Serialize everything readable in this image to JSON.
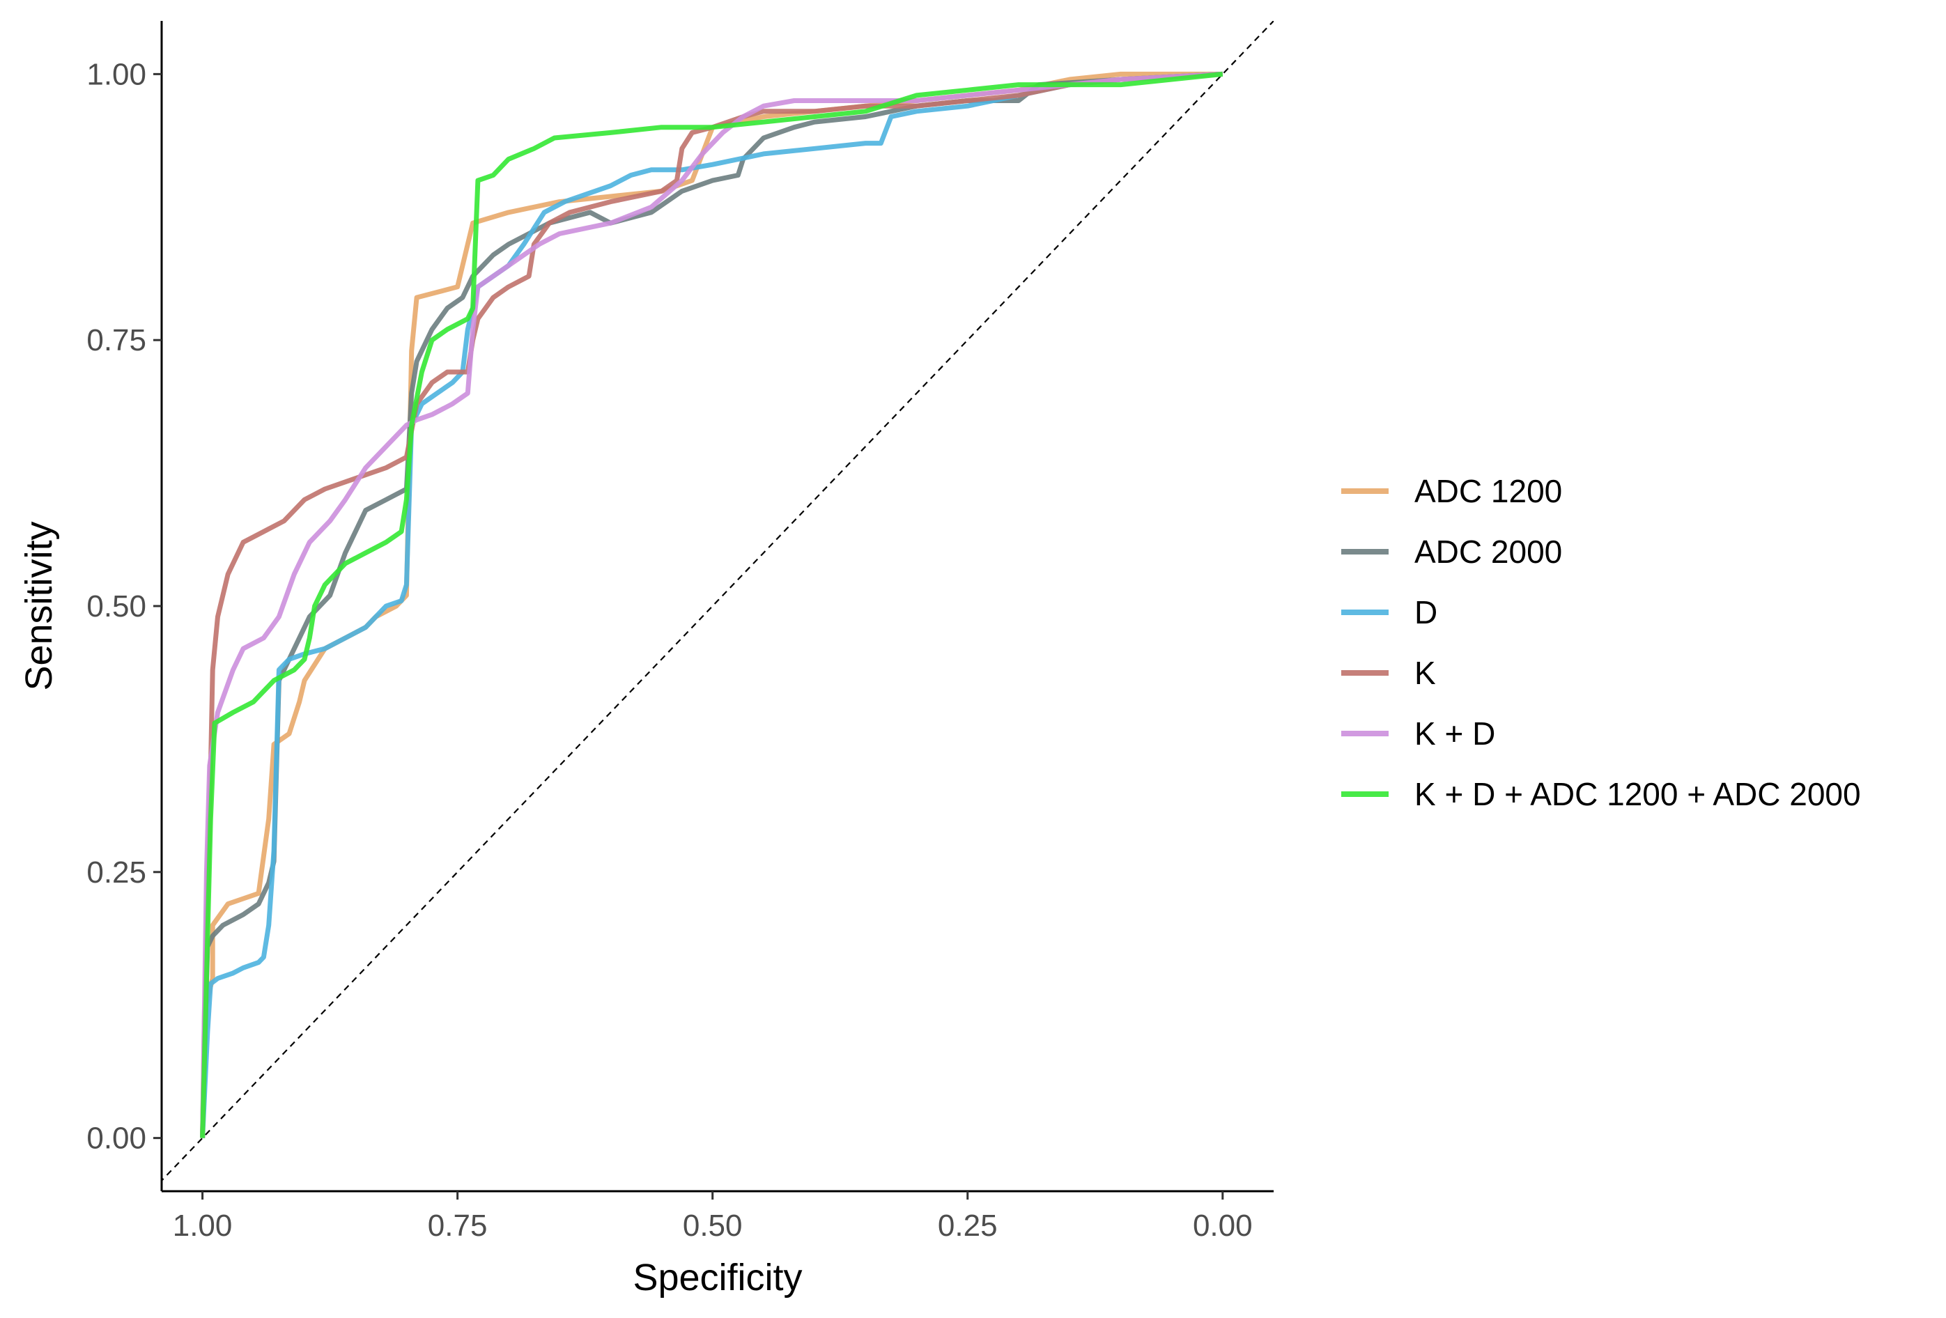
{
  "chart_data": {
    "type": "line",
    "title": "",
    "xlabel": "Specificity",
    "ylabel": "Sensitivity",
    "x_reversed": true,
    "xlim": [
      1.04,
      -0.05
    ],
    "ylim": [
      -0.05,
      1.05
    ],
    "x_ticks": [
      1.0,
      0.75,
      0.5,
      0.25,
      0.0
    ],
    "x_tick_labels": [
      "1.00",
      "0.75",
      "0.50",
      "0.25",
      "0.00"
    ],
    "y_ticks": [
      0.0,
      0.25,
      0.5,
      0.75,
      1.0
    ],
    "y_tick_labels": [
      "0.00",
      "0.25",
      "0.50",
      "0.75",
      "1.00"
    ],
    "grid": false,
    "legend_position": "right",
    "reference_line": {
      "style": "dashed",
      "color": "#000000",
      "from": [
        1.05,
        -0.05
      ],
      "to": [
        -0.05,
        1.05
      ]
    },
    "series": [
      {
        "name": "ADC 1200",
        "color": "#E8A86A",
        "points": [
          [
            1.0,
            0.0
          ],
          [
            0.998,
            0.12
          ],
          [
            0.99,
            0.15
          ],
          [
            0.99,
            0.2
          ],
          [
            0.975,
            0.22
          ],
          [
            0.96,
            0.225
          ],
          [
            0.945,
            0.23
          ],
          [
            0.935,
            0.3
          ],
          [
            0.93,
            0.37
          ],
          [
            0.915,
            0.38
          ],
          [
            0.905,
            0.41
          ],
          [
            0.9,
            0.43
          ],
          [
            0.88,
            0.46
          ],
          [
            0.86,
            0.47
          ],
          [
            0.84,
            0.48
          ],
          [
            0.83,
            0.49
          ],
          [
            0.81,
            0.5
          ],
          [
            0.8,
            0.51
          ],
          [
            0.795,
            0.74
          ],
          [
            0.79,
            0.79
          ],
          [
            0.77,
            0.795
          ],
          [
            0.75,
            0.8
          ],
          [
            0.745,
            0.82
          ],
          [
            0.735,
            0.86
          ],
          [
            0.7,
            0.87
          ],
          [
            0.65,
            0.88
          ],
          [
            0.6,
            0.885
          ],
          [
            0.55,
            0.89
          ],
          [
            0.52,
            0.9
          ],
          [
            0.5,
            0.95
          ],
          [
            0.45,
            0.96
          ],
          [
            0.4,
            0.965
          ],
          [
            0.35,
            0.97
          ],
          [
            0.3,
            0.975
          ],
          [
            0.25,
            0.98
          ],
          [
            0.2,
            0.985
          ],
          [
            0.15,
            0.995
          ],
          [
            0.1,
            1.0
          ],
          [
            0.0,
            1.0
          ]
        ]
      },
      {
        "name": "ADC 2000",
        "color": "#6B7D80",
        "points": [
          [
            1.0,
            0.0
          ],
          [
            0.995,
            0.18
          ],
          [
            0.99,
            0.19
          ],
          [
            0.98,
            0.2
          ],
          [
            0.96,
            0.21
          ],
          [
            0.945,
            0.22
          ],
          [
            0.935,
            0.24
          ],
          [
            0.93,
            0.26
          ],
          [
            0.925,
            0.43
          ],
          [
            0.915,
            0.45
          ],
          [
            0.905,
            0.47
          ],
          [
            0.895,
            0.49
          ],
          [
            0.875,
            0.51
          ],
          [
            0.86,
            0.55
          ],
          [
            0.85,
            0.57
          ],
          [
            0.84,
            0.59
          ],
          [
            0.82,
            0.6
          ],
          [
            0.8,
            0.61
          ],
          [
            0.795,
            0.7
          ],
          [
            0.79,
            0.73
          ],
          [
            0.775,
            0.76
          ],
          [
            0.76,
            0.78
          ],
          [
            0.745,
            0.79
          ],
          [
            0.735,
            0.81
          ],
          [
            0.715,
            0.83
          ],
          [
            0.7,
            0.84
          ],
          [
            0.68,
            0.85
          ],
          [
            0.66,
            0.86
          ],
          [
            0.62,
            0.87
          ],
          [
            0.6,
            0.86
          ],
          [
            0.56,
            0.87
          ],
          [
            0.53,
            0.89
          ],
          [
            0.5,
            0.9
          ],
          [
            0.475,
            0.905
          ],
          [
            0.47,
            0.92
          ],
          [
            0.45,
            0.94
          ],
          [
            0.42,
            0.95
          ],
          [
            0.4,
            0.955
          ],
          [
            0.35,
            0.96
          ],
          [
            0.3,
            0.97
          ],
          [
            0.25,
            0.975
          ],
          [
            0.2,
            0.975
          ],
          [
            0.18,
            0.99
          ],
          [
            0.1,
            0.995
          ],
          [
            0.0,
            1.0
          ]
        ]
      },
      {
        "name": "D",
        "color": "#4DB3DF",
        "points": [
          [
            1.0,
            0.0
          ],
          [
            0.995,
            0.1
          ],
          [
            0.992,
            0.145
          ],
          [
            0.985,
            0.15
          ],
          [
            0.97,
            0.155
          ],
          [
            0.96,
            0.16
          ],
          [
            0.945,
            0.165
          ],
          [
            0.94,
            0.17
          ],
          [
            0.935,
            0.2
          ],
          [
            0.93,
            0.27
          ],
          [
            0.925,
            0.44
          ],
          [
            0.915,
            0.45
          ],
          [
            0.9,
            0.455
          ],
          [
            0.88,
            0.46
          ],
          [
            0.86,
            0.47
          ],
          [
            0.84,
            0.48
          ],
          [
            0.82,
            0.5
          ],
          [
            0.805,
            0.505
          ],
          [
            0.8,
            0.52
          ],
          [
            0.795,
            0.67
          ],
          [
            0.785,
            0.69
          ],
          [
            0.77,
            0.7
          ],
          [
            0.755,
            0.71
          ],
          [
            0.745,
            0.72
          ],
          [
            0.74,
            0.76
          ],
          [
            0.73,
            0.8
          ],
          [
            0.715,
            0.81
          ],
          [
            0.7,
            0.82
          ],
          [
            0.685,
            0.84
          ],
          [
            0.665,
            0.87
          ],
          [
            0.645,
            0.88
          ],
          [
            0.6,
            0.895
          ],
          [
            0.58,
            0.905
          ],
          [
            0.56,
            0.91
          ],
          [
            0.53,
            0.91
          ],
          [
            0.5,
            0.915
          ],
          [
            0.45,
            0.925
          ],
          [
            0.4,
            0.93
          ],
          [
            0.35,
            0.935
          ],
          [
            0.335,
            0.935
          ],
          [
            0.325,
            0.96
          ],
          [
            0.3,
            0.965
          ],
          [
            0.25,
            0.97
          ],
          [
            0.2,
            0.98
          ],
          [
            0.15,
            0.99
          ],
          [
            0.1,
            0.995
          ],
          [
            0.0,
            1.0
          ]
        ]
      },
      {
        "name": "K",
        "color": "#C0726C",
        "points": [
          [
            1.0,
            0.0
          ],
          [
            0.996,
            0.2
          ],
          [
            0.993,
            0.3
          ],
          [
            0.99,
            0.44
          ],
          [
            0.985,
            0.49
          ],
          [
            0.975,
            0.53
          ],
          [
            0.96,
            0.56
          ],
          [
            0.94,
            0.57
          ],
          [
            0.92,
            0.58
          ],
          [
            0.9,
            0.6
          ],
          [
            0.88,
            0.61
          ],
          [
            0.85,
            0.62
          ],
          [
            0.82,
            0.63
          ],
          [
            0.8,
            0.64
          ],
          [
            0.79,
            0.69
          ],
          [
            0.775,
            0.71
          ],
          [
            0.76,
            0.72
          ],
          [
            0.74,
            0.72
          ],
          [
            0.735,
            0.75
          ],
          [
            0.73,
            0.77
          ],
          [
            0.715,
            0.79
          ],
          [
            0.7,
            0.8
          ],
          [
            0.68,
            0.81
          ],
          [
            0.675,
            0.84
          ],
          [
            0.66,
            0.86
          ],
          [
            0.64,
            0.87
          ],
          [
            0.6,
            0.88
          ],
          [
            0.55,
            0.89
          ],
          [
            0.535,
            0.9
          ],
          [
            0.53,
            0.93
          ],
          [
            0.52,
            0.945
          ],
          [
            0.5,
            0.95
          ],
          [
            0.47,
            0.96
          ],
          [
            0.45,
            0.965
          ],
          [
            0.4,
            0.965
          ],
          [
            0.35,
            0.97
          ],
          [
            0.3,
            0.97
          ],
          [
            0.25,
            0.975
          ],
          [
            0.2,
            0.98
          ],
          [
            0.15,
            0.99
          ],
          [
            0.1,
            0.995
          ],
          [
            0.0,
            1.0
          ]
        ]
      },
      {
        "name": "K + D",
        "color": "#CC8FDD",
        "points": [
          [
            1.0,
            0.0
          ],
          [
            0.996,
            0.25
          ],
          [
            0.993,
            0.35
          ],
          [
            0.985,
            0.4
          ],
          [
            0.97,
            0.44
          ],
          [
            0.96,
            0.46
          ],
          [
            0.94,
            0.47
          ],
          [
            0.925,
            0.49
          ],
          [
            0.91,
            0.53
          ],
          [
            0.895,
            0.56
          ],
          [
            0.875,
            0.58
          ],
          [
            0.86,
            0.6
          ],
          [
            0.84,
            0.63
          ],
          [
            0.82,
            0.65
          ],
          [
            0.8,
            0.67
          ],
          [
            0.79,
            0.675
          ],
          [
            0.775,
            0.68
          ],
          [
            0.755,
            0.69
          ],
          [
            0.74,
            0.7
          ],
          [
            0.735,
            0.76
          ],
          [
            0.73,
            0.8
          ],
          [
            0.715,
            0.81
          ],
          [
            0.7,
            0.82
          ],
          [
            0.685,
            0.83
          ],
          [
            0.67,
            0.84
          ],
          [
            0.65,
            0.85
          ],
          [
            0.6,
            0.86
          ],
          [
            0.56,
            0.875
          ],
          [
            0.53,
            0.9
          ],
          [
            0.51,
            0.925
          ],
          [
            0.49,
            0.945
          ],
          [
            0.47,
            0.96
          ],
          [
            0.45,
            0.97
          ],
          [
            0.42,
            0.975
          ],
          [
            0.35,
            0.975
          ],
          [
            0.3,
            0.975
          ],
          [
            0.25,
            0.98
          ],
          [
            0.2,
            0.985
          ],
          [
            0.15,
            0.99
          ],
          [
            0.1,
            0.995
          ],
          [
            0.0,
            1.0
          ]
        ]
      },
      {
        "name": "K + D + ADC 1200 + ADC 2000",
        "color": "#33E833",
        "points": [
          [
            1.0,
            0.0
          ],
          [
            0.996,
            0.15
          ],
          [
            0.992,
            0.3
          ],
          [
            0.988,
            0.39
          ],
          [
            0.97,
            0.4
          ],
          [
            0.95,
            0.41
          ],
          [
            0.93,
            0.43
          ],
          [
            0.91,
            0.44
          ],
          [
            0.9,
            0.45
          ],
          [
            0.895,
            0.47
          ],
          [
            0.89,
            0.5
          ],
          [
            0.88,
            0.52
          ],
          [
            0.86,
            0.54
          ],
          [
            0.84,
            0.55
          ],
          [
            0.82,
            0.56
          ],
          [
            0.805,
            0.57
          ],
          [
            0.8,
            0.6
          ],
          [
            0.795,
            0.67
          ],
          [
            0.785,
            0.72
          ],
          [
            0.775,
            0.75
          ],
          [
            0.76,
            0.76
          ],
          [
            0.74,
            0.77
          ],
          [
            0.735,
            0.78
          ],
          [
            0.73,
            0.9
          ],
          [
            0.715,
            0.905
          ],
          [
            0.7,
            0.92
          ],
          [
            0.675,
            0.93
          ],
          [
            0.655,
            0.94
          ],
          [
            0.6,
            0.945
          ],
          [
            0.55,
            0.95
          ],
          [
            0.5,
            0.95
          ],
          [
            0.45,
            0.955
          ],
          [
            0.4,
            0.96
          ],
          [
            0.35,
            0.965
          ],
          [
            0.3,
            0.98
          ],
          [
            0.25,
            0.985
          ],
          [
            0.2,
            0.99
          ],
          [
            0.15,
            0.99
          ],
          [
            0.1,
            0.99
          ],
          [
            0.05,
            0.995
          ],
          [
            0.0,
            1.0
          ]
        ]
      }
    ]
  }
}
